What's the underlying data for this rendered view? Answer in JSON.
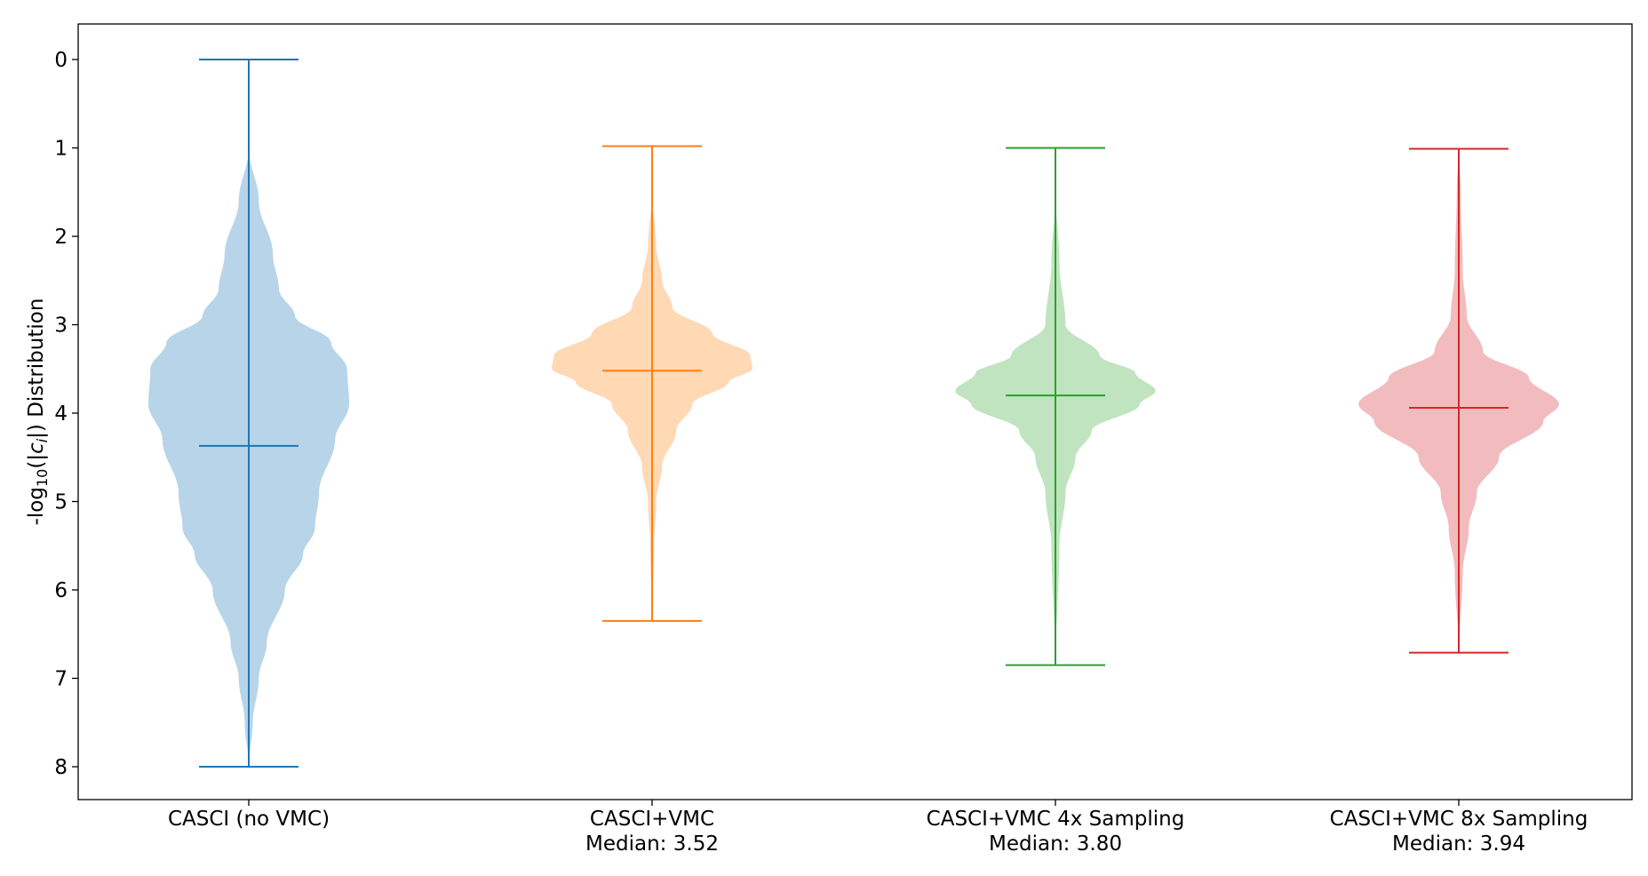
{
  "chart_data": {
    "type": "violin",
    "ylabel": "-log10(|c_i|) Distribution",
    "ylabel_parts": [
      "-log",
      "10",
      "(|",
      "c",
      "i",
      "|) Distribution"
    ],
    "y_inverted": true,
    "ylim": [
      -0.4,
      8.4
    ],
    "yticks": [
      0,
      1,
      2,
      3,
      4,
      5,
      6,
      7,
      8
    ],
    "categories": [
      {
        "label": "CASCI (no VMC)",
        "sublabel": ""
      },
      {
        "label": "CASCI+VMC",
        "sublabel": "Median: 3.52"
      },
      {
        "label": "CASCI+VMC 4x Sampling",
        "sublabel": "Median: 3.80"
      },
      {
        "label": "CASCI+VMC 8x Sampling",
        "sublabel": "Median: 3.94"
      }
    ],
    "series": [
      {
        "color": "#1f77b4",
        "fill": "#b8d4e8",
        "min": 0.0,
        "max": 8.0,
        "median": 4.37,
        "density": [
          [
            1.0,
            0.0
          ],
          [
            1.6,
            0.05
          ],
          [
            2.2,
            0.12
          ],
          [
            2.6,
            0.15
          ],
          [
            2.9,
            0.23
          ],
          [
            3.2,
            0.41
          ],
          [
            3.5,
            0.49
          ],
          [
            3.9,
            0.5
          ],
          [
            4.3,
            0.43
          ],
          [
            4.9,
            0.35
          ],
          [
            5.3,
            0.33
          ],
          [
            5.6,
            0.27
          ],
          [
            6.0,
            0.18
          ],
          [
            6.6,
            0.09
          ],
          [
            7.0,
            0.05
          ],
          [
            7.5,
            0.02
          ],
          [
            8.0,
            0.0
          ]
        ]
      },
      {
        "color": "#ff7f0e",
        "fill": "#ffd8b4",
        "min": 0.98,
        "max": 6.35,
        "median": 3.52,
        "density": [
          [
            0.98,
            0.0
          ],
          [
            1.5,
            0.0
          ],
          [
            2.1,
            0.02
          ],
          [
            2.5,
            0.05
          ],
          [
            2.8,
            0.1
          ],
          [
            3.1,
            0.3
          ],
          [
            3.35,
            0.49
          ],
          [
            3.5,
            0.5
          ],
          [
            3.65,
            0.38
          ],
          [
            3.9,
            0.2
          ],
          [
            4.2,
            0.12
          ],
          [
            4.6,
            0.05
          ],
          [
            5.0,
            0.02
          ],
          [
            5.5,
            0.01
          ],
          [
            6.35,
            0.0
          ]
        ]
      },
      {
        "color": "#2ca02c",
        "fill": "#bfe4bf",
        "min": 1.0,
        "max": 6.85,
        "median": 3.8,
        "density": [
          [
            1.0,
            0.0
          ],
          [
            1.5,
            0.0
          ],
          [
            2.3,
            0.02
          ],
          [
            3.0,
            0.05
          ],
          [
            3.35,
            0.22
          ],
          [
            3.55,
            0.4
          ],
          [
            3.75,
            0.5
          ],
          [
            3.9,
            0.42
          ],
          [
            4.2,
            0.18
          ],
          [
            4.5,
            0.1
          ],
          [
            4.9,
            0.05
          ],
          [
            5.5,
            0.02
          ],
          [
            6.85,
            0.0
          ]
        ]
      },
      {
        "color": "#d62728",
        "fill": "#f2bcbe",
        "min": 1.01,
        "max": 6.71,
        "median": 3.94,
        "density": [
          [
            1.01,
            0.0
          ],
          [
            1.5,
            0.01
          ],
          [
            2.4,
            0.02
          ],
          [
            2.9,
            0.04
          ],
          [
            3.3,
            0.12
          ],
          [
            3.6,
            0.35
          ],
          [
            3.9,
            0.5
          ],
          [
            4.1,
            0.42
          ],
          [
            4.5,
            0.2
          ],
          [
            4.9,
            0.09
          ],
          [
            5.3,
            0.05
          ],
          [
            5.8,
            0.02
          ],
          [
            6.71,
            0.0
          ]
        ]
      }
    ],
    "grid": false,
    "legend": "none"
  }
}
